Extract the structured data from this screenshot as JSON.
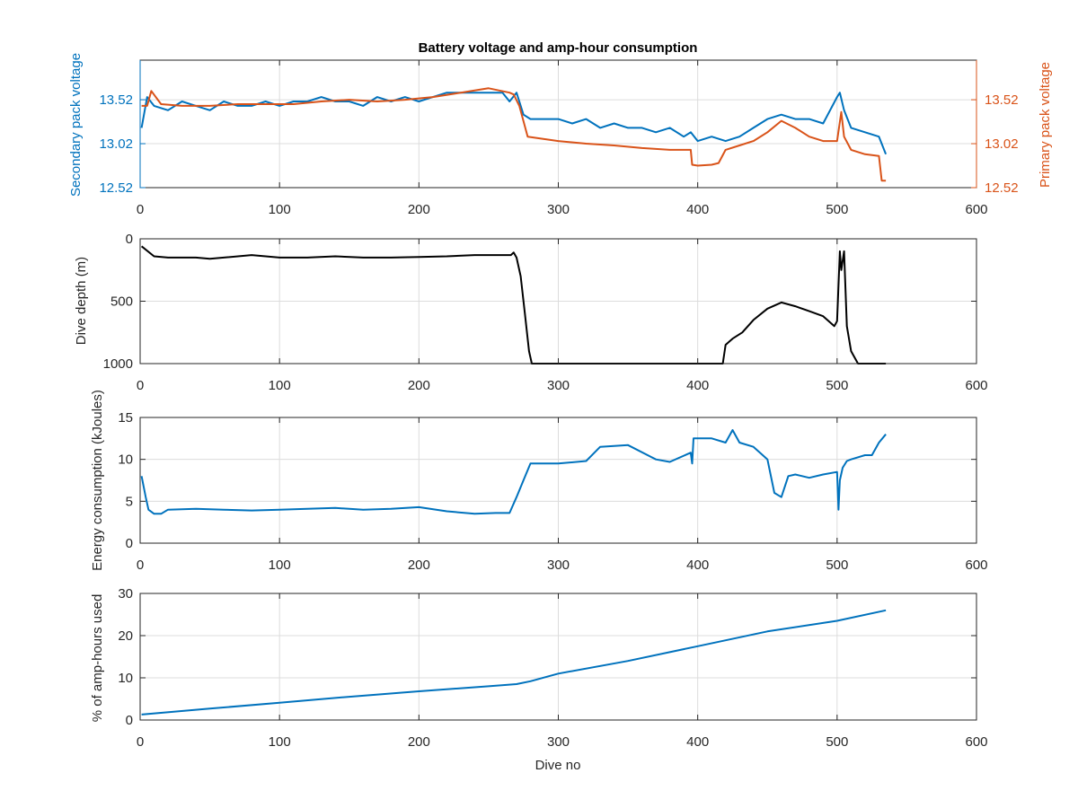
{
  "chart_data": [
    {
      "type": "line",
      "title": "Battery voltage and amp-hour consumption",
      "xlabel": "",
      "xlim": [
        0,
        600
      ],
      "xticks": [
        "0",
        "100",
        "200",
        "300",
        "400",
        "500",
        "600"
      ],
      "grid": true,
      "left_axis": {
        "label": "Secondary pack voltage",
        "color": "#0072BD",
        "ylim": [
          12.52,
          13.97
        ],
        "yticks": [
          "12.52",
          "13.02",
          "13.52"
        ]
      },
      "right_axis": {
        "label": "Primary pack voltage",
        "color": "#D95319",
        "ylim": [
          12.52,
          13.97
        ],
        "yticks": [
          "12.52",
          "13.02",
          "13.52"
        ]
      },
      "series": [
        {
          "axis": "left",
          "color": "#0072BD",
          "x": [
            1,
            5,
            10,
            20,
            30,
            40,
            50,
            60,
            70,
            80,
            90,
            100,
            110,
            120,
            130,
            140,
            150,
            160,
            170,
            180,
            190,
            200,
            210,
            220,
            230,
            240,
            250,
            260,
            265,
            270,
            275,
            280,
            290,
            300,
            310,
            320,
            330,
            340,
            350,
            360,
            370,
            380,
            390,
            395,
            400,
            410,
            420,
            430,
            440,
            450,
            460,
            470,
            480,
            490,
            500,
            502,
            505,
            510,
            520,
            530,
            535
          ],
          "y": [
            13.2,
            13.55,
            13.45,
            13.4,
            13.5,
            13.45,
            13.4,
            13.5,
            13.45,
            13.45,
            13.5,
            13.45,
            13.5,
            13.5,
            13.55,
            13.5,
            13.5,
            13.45,
            13.55,
            13.5,
            13.55,
            13.5,
            13.55,
            13.6,
            13.6,
            13.6,
            13.6,
            13.6,
            13.5,
            13.6,
            13.35,
            13.3,
            13.3,
            13.3,
            13.25,
            13.3,
            13.2,
            13.25,
            13.2,
            13.2,
            13.15,
            13.2,
            13.1,
            13.15,
            13.05,
            13.1,
            13.05,
            13.1,
            13.2,
            13.3,
            13.35,
            13.3,
            13.3,
            13.25,
            13.55,
            13.6,
            13.4,
            13.2,
            13.15,
            13.1,
            12.9
          ]
        },
        {
          "axis": "right",
          "color": "#D95319",
          "x": [
            1,
            5,
            8,
            15,
            30,
            50,
            70,
            90,
            110,
            130,
            150,
            170,
            190,
            210,
            230,
            250,
            265,
            268,
            272,
            278,
            300,
            320,
            340,
            360,
            380,
            395,
            396,
            400,
            410,
            415,
            420,
            430,
            440,
            450,
            460,
            470,
            480,
            490,
            500,
            503,
            505,
            510,
            520,
            530,
            532,
            535
          ],
          "y": [
            13.45,
            13.45,
            13.62,
            13.47,
            13.45,
            13.45,
            13.47,
            13.47,
            13.47,
            13.5,
            13.52,
            13.5,
            13.52,
            13.55,
            13.6,
            13.65,
            13.6,
            13.58,
            13.45,
            13.1,
            13.05,
            13.02,
            13.0,
            12.97,
            12.95,
            12.95,
            12.78,
            12.77,
            12.78,
            12.8,
            12.95,
            13.0,
            13.05,
            13.15,
            13.28,
            13.2,
            13.1,
            13.05,
            13.05,
            13.38,
            13.1,
            12.95,
            12.9,
            12.88,
            12.6,
            12.6
          ]
        }
      ]
    },
    {
      "type": "line",
      "xlabel": "",
      "ylabel": "Dive depth (m)",
      "xlim": [
        0,
        600
      ],
      "ylim": [
        0,
        1000
      ],
      "y_reversed": true,
      "xticks": [
        "0",
        "100",
        "200",
        "300",
        "400",
        "500",
        "600"
      ],
      "yticks": [
        "0",
        "500",
        "1000"
      ],
      "grid": true,
      "series": [
        {
          "color": "#000000",
          "x": [
            1,
            10,
            20,
            40,
            50,
            60,
            80,
            100,
            120,
            140,
            160,
            180,
            200,
            220,
            240,
            260,
            266,
            268,
            270,
            273,
            276,
            279,
            281,
            290,
            320,
            360,
            400,
            418,
            420,
            425,
            432,
            440,
            450,
            460,
            470,
            480,
            490,
            498,
            500,
            502,
            503,
            505,
            507,
            510,
            515,
            520,
            535
          ],
          "y": [
            60,
            140,
            150,
            150,
            160,
            150,
            130,
            150,
            150,
            140,
            150,
            150,
            145,
            140,
            130,
            130,
            130,
            110,
            150,
            300,
            600,
            900,
            1000,
            1000,
            1000,
            1000,
            1000,
            1000,
            850,
            800,
            750,
            650,
            560,
            510,
            540,
            580,
            620,
            700,
            660,
            100,
            250,
            100,
            700,
            900,
            1000,
            1000,
            1000
          ]
        }
      ]
    },
    {
      "type": "line",
      "xlabel": "",
      "ylabel": "Energy consumption (kJoules)",
      "xlim": [
        0,
        600
      ],
      "ylim": [
        0,
        15
      ],
      "xticks": [
        "0",
        "100",
        "200",
        "300",
        "400",
        "500",
        "600"
      ],
      "yticks": [
        "0",
        "5",
        "10",
        "15"
      ],
      "grid": true,
      "series": [
        {
          "color": "#0072BD",
          "x": [
            1,
            4,
            6,
            10,
            15,
            20,
            40,
            60,
            80,
            100,
            120,
            140,
            160,
            180,
            200,
            220,
            240,
            255,
            265,
            270,
            275,
            280,
            290,
            300,
            320,
            330,
            350,
            370,
            380,
            395,
            396,
            397,
            400,
            410,
            420,
            425,
            430,
            440,
            450,
            455,
            460,
            465,
            470,
            480,
            490,
            500,
            501,
            502,
            504,
            507,
            510,
            520,
            525,
            530,
            535
          ],
          "y": [
            8,
            5.5,
            4,
            3.5,
            3.5,
            4,
            4.1,
            4,
            3.9,
            4,
            4.1,
            4.2,
            4,
            4.1,
            4.3,
            3.8,
            3.5,
            3.6,
            3.6,
            5.5,
            7.5,
            9.5,
            9.5,
            9.5,
            9.8,
            11.5,
            11.7,
            10,
            9.7,
            10.8,
            9.5,
            12.5,
            12.5,
            12.5,
            12,
            13.5,
            12,
            11.5,
            10,
            6,
            5.5,
            8,
            8.2,
            7.8,
            8.2,
            8.5,
            4,
            7.5,
            9,
            9.8,
            10,
            10.5,
            10.5,
            12,
            13
          ]
        }
      ]
    },
    {
      "type": "line",
      "xlabel": "Dive no",
      "ylabel": "% of amp-hours used",
      "xlim": [
        0,
        600
      ],
      "ylim": [
        0,
        30
      ],
      "xticks": [
        "0",
        "100",
        "200",
        "300",
        "400",
        "500",
        "600"
      ],
      "yticks": [
        "0",
        "10",
        "20",
        "30"
      ],
      "grid": true,
      "series": [
        {
          "color": "#0072BD",
          "x": [
            1,
            50,
            100,
            150,
            200,
            250,
            270,
            280,
            300,
            350,
            400,
            450,
            500,
            535
          ],
          "y": [
            1.3,
            2.7,
            4.1,
            5.5,
            6.8,
            8.0,
            8.5,
            9.2,
            11.0,
            14.0,
            17.5,
            21.0,
            23.5,
            26.0
          ]
        }
      ]
    }
  ]
}
